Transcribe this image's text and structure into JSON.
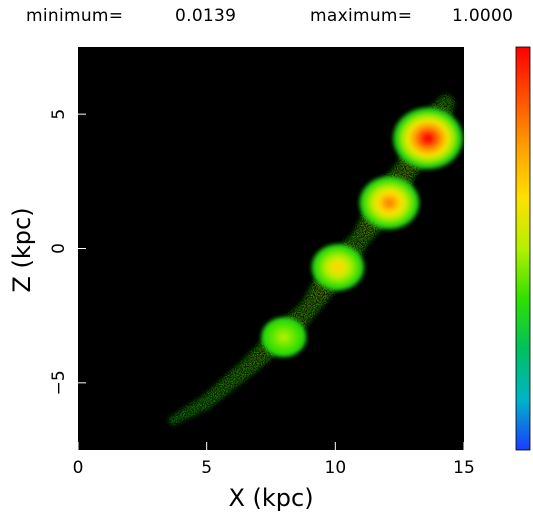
{
  "header": {
    "min_label": "minimum=",
    "min_value": "0.0139",
    "max_label": "maximum=",
    "max_value": "1.0000"
  },
  "chart_data": {
    "type": "heatmap",
    "title": "",
    "xlabel": "X (kpc)",
    "ylabel": "Z (kpc)",
    "xlim": [
      0,
      15
    ],
    "ylim": [
      -7.5,
      7.5
    ],
    "xticks": [
      0,
      5,
      10,
      15
    ],
    "yticks": [
      5,
      0,
      -5
    ],
    "xtick_labels": [
      "0",
      "5",
      "10",
      "15"
    ],
    "ytick_labels": [
      "5",
      "0",
      "−5"
    ],
    "background": "#000000",
    "colorbar": {
      "min": 0.0139,
      "max": 1.0,
      "colors_bottom_to_top": [
        "#1a3cff",
        "#00b4c8",
        "#00c060",
        "#30e000",
        "#b4f000",
        "#ffe000",
        "#ffa000",
        "#ff5000",
        "#ff0000"
      ]
    },
    "ridge": [
      {
        "x": 3.7,
        "z": -6.4,
        "w": 0.05
      },
      {
        "x": 5.0,
        "z": -5.7,
        "w": 0.2
      },
      {
        "x": 6.5,
        "z": -4.5,
        "w": 0.3
      },
      {
        "x": 8.0,
        "z": -3.2,
        "w": 0.5
      },
      {
        "x": 9.0,
        "z": -2.2,
        "w": 0.35
      },
      {
        "x": 10.0,
        "z": -0.8,
        "w": 0.65
      },
      {
        "x": 11.0,
        "z": 0.4,
        "w": 0.35
      },
      {
        "x": 12.0,
        "z": 1.8,
        "w": 0.8
      },
      {
        "x": 12.8,
        "z": 3.0,
        "w": 0.45
      },
      {
        "x": 13.5,
        "z": 4.1,
        "w": 1.0
      },
      {
        "x": 14.3,
        "z": 5.4,
        "w": 0.3
      }
    ],
    "peaks": [
      {
        "x": 8.0,
        "z": -3.3,
        "value": 0.5
      },
      {
        "x": 10.1,
        "z": -0.7,
        "value": 0.65
      },
      {
        "x": 12.1,
        "z": 1.7,
        "value": 0.8
      },
      {
        "x": 13.6,
        "z": 4.1,
        "value": 1.0
      }
    ]
  }
}
